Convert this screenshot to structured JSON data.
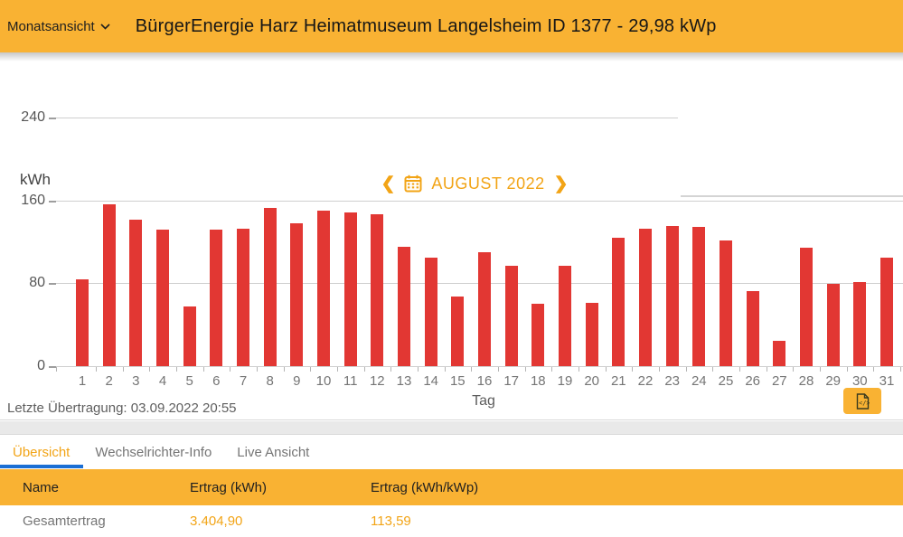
{
  "header": {
    "view_selector": "Monatsansicht",
    "title": "BürgerEnergie Harz Heimatmuseum Langelsheim ID 1377 - 29,98 kWp"
  },
  "chart": {
    "unit_label": "kWh",
    "month_label": "AUGUST 2022",
    "x_axis_label": "Tag",
    "last_transmission": "Letzte Übertragung: 03.09.2022 20:55"
  },
  "chart_data": {
    "type": "bar",
    "title": "AUGUST 2022",
    "xlabel": "Tag",
    "ylabel": "kWh",
    "ylim": [
      0,
      240
    ],
    "y_ticks": [
      240,
      160,
      80,
      0
    ],
    "grid": true,
    "bar_color": "#E23733",
    "categories": [
      "1",
      "2",
      "3",
      "4",
      "5",
      "6",
      "7",
      "8",
      "9",
      "10",
      "11",
      "12",
      "13",
      "14",
      "15",
      "16",
      "17",
      "18",
      "19",
      "20",
      "21",
      "22",
      "23",
      "24",
      "25",
      "26",
      "27",
      "28",
      "29",
      "30",
      "31"
    ],
    "values": [
      84,
      156,
      141,
      132,
      58,
      132,
      133,
      153,
      138,
      150,
      148,
      147,
      115,
      105,
      67,
      110,
      97,
      60,
      97,
      61,
      124,
      133,
      135,
      134,
      121,
      72,
      24,
      114,
      79,
      81,
      105
    ]
  },
  "tabs": [
    {
      "label": "Übersicht",
      "active": true
    },
    {
      "label": "Wechselrichter-Info",
      "active": false
    },
    {
      "label": "Live Ansicht",
      "active": false
    }
  ],
  "table": {
    "headers": [
      "Name",
      "Ertrag (kWh)",
      "Ertrag (kWh/kWp)"
    ],
    "total_row": {
      "name": "Gesamtertrag",
      "ertrag_kwh": "3.404,90",
      "ertrag_kwh_kwp": "113,59"
    }
  },
  "colors": {
    "amber_bg": "#F9B233",
    "amber_text": "#F2A416",
    "bar_red": "#E23733",
    "tab_underline_blue": "#1C6FD4"
  }
}
